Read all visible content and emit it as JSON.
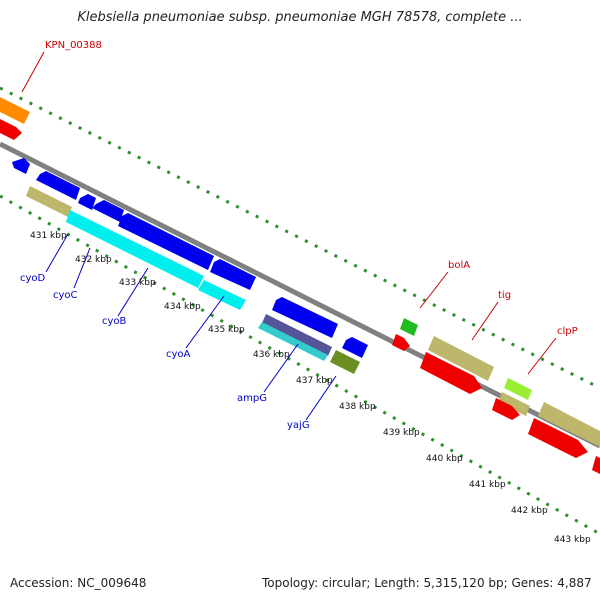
{
  "title": "Klebsiella pneumoniae subsp. pneumoniae MGH 78578, complete ...",
  "footer": {
    "accession": "Accession: NC_009648",
    "summary": "Topology: circular; Length: 5,315,120 bp; Genes: 4,887"
  },
  "colors": {
    "backbone": "#808080",
    "tick_dots": "#2f8f2f",
    "forward_label": "#cc0000",
    "reverse_label": "#0000cc",
    "kbp_label": "#111111"
  },
  "kbp_labels": [
    "431 kbp",
    "432 kbp",
    "433 kbp",
    "434 kbp",
    "435 kbp",
    "436 kbp",
    "437 kbp",
    "438 kbp",
    "439 kbp",
    "440 kbp",
    "441 kbp",
    "442 kbp",
    "443 kbp"
  ],
  "gene_labels": [
    {
      "name": "KPN_00388",
      "strand": "forward"
    },
    {
      "name": "cyoD",
      "strand": "reverse"
    },
    {
      "name": "cyoC",
      "strand": "reverse"
    },
    {
      "name": "cyoB",
      "strand": "reverse"
    },
    {
      "name": "cyoA",
      "strand": "reverse"
    },
    {
      "name": "ampG",
      "strand": "reverse"
    },
    {
      "name": "yajG",
      "strand": "reverse"
    },
    {
      "name": "bolA",
      "strand": "forward"
    },
    {
      "name": "tig",
      "strand": "forward"
    },
    {
      "name": "clpP",
      "strand": "forward"
    }
  ]
}
